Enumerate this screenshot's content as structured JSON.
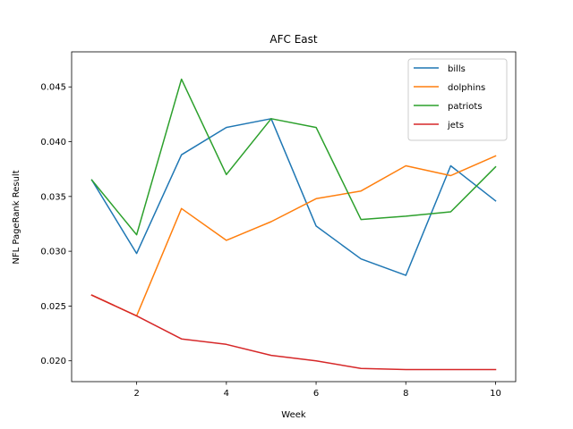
{
  "chart_data": {
    "type": "line",
    "title": "AFC East",
    "xlabel": "Week",
    "ylabel": "NFL PageRank Result",
    "xlim": [
      0.55,
      10.45
    ],
    "ylim": [
      0.0181,
      0.0482
    ],
    "xticks": [
      2,
      4,
      6,
      8,
      10
    ],
    "yticks": [
      0.02,
      0.025,
      0.03,
      0.035,
      0.04,
      0.045
    ],
    "ytick_labels": [
      "0.020",
      "0.025",
      "0.030",
      "0.035",
      "0.040",
      "0.045"
    ],
    "grid": false,
    "legend_position": "upper right",
    "x": [
      1,
      2,
      3,
      4,
      5,
      6,
      7,
      8,
      9,
      10
    ],
    "series": [
      {
        "name": "bills",
        "color": "#1f77b4",
        "values": [
          0.0365,
          0.0298,
          0.0388,
          0.0413,
          0.0421,
          0.0323,
          0.0293,
          0.0278,
          0.0378,
          0.0346
        ]
      },
      {
        "name": "dolphins",
        "color": "#ff7f0e",
        "values": [
          0.026,
          0.0241,
          0.0339,
          0.031,
          0.0327,
          0.0348,
          0.0355,
          0.0378,
          0.0369,
          0.0387
        ]
      },
      {
        "name": "patriots",
        "color": "#2ca02c",
        "values": [
          0.0365,
          0.0315,
          0.0457,
          0.037,
          0.0421,
          0.0413,
          0.0329,
          0.0332,
          0.0336,
          0.0377
        ]
      },
      {
        "name": "jets",
        "color": "#d62728",
        "values": [
          0.026,
          0.0241,
          0.022,
          0.0215,
          0.0205,
          0.02,
          0.0193,
          0.0192,
          0.0192,
          0.0192
        ]
      }
    ]
  }
}
